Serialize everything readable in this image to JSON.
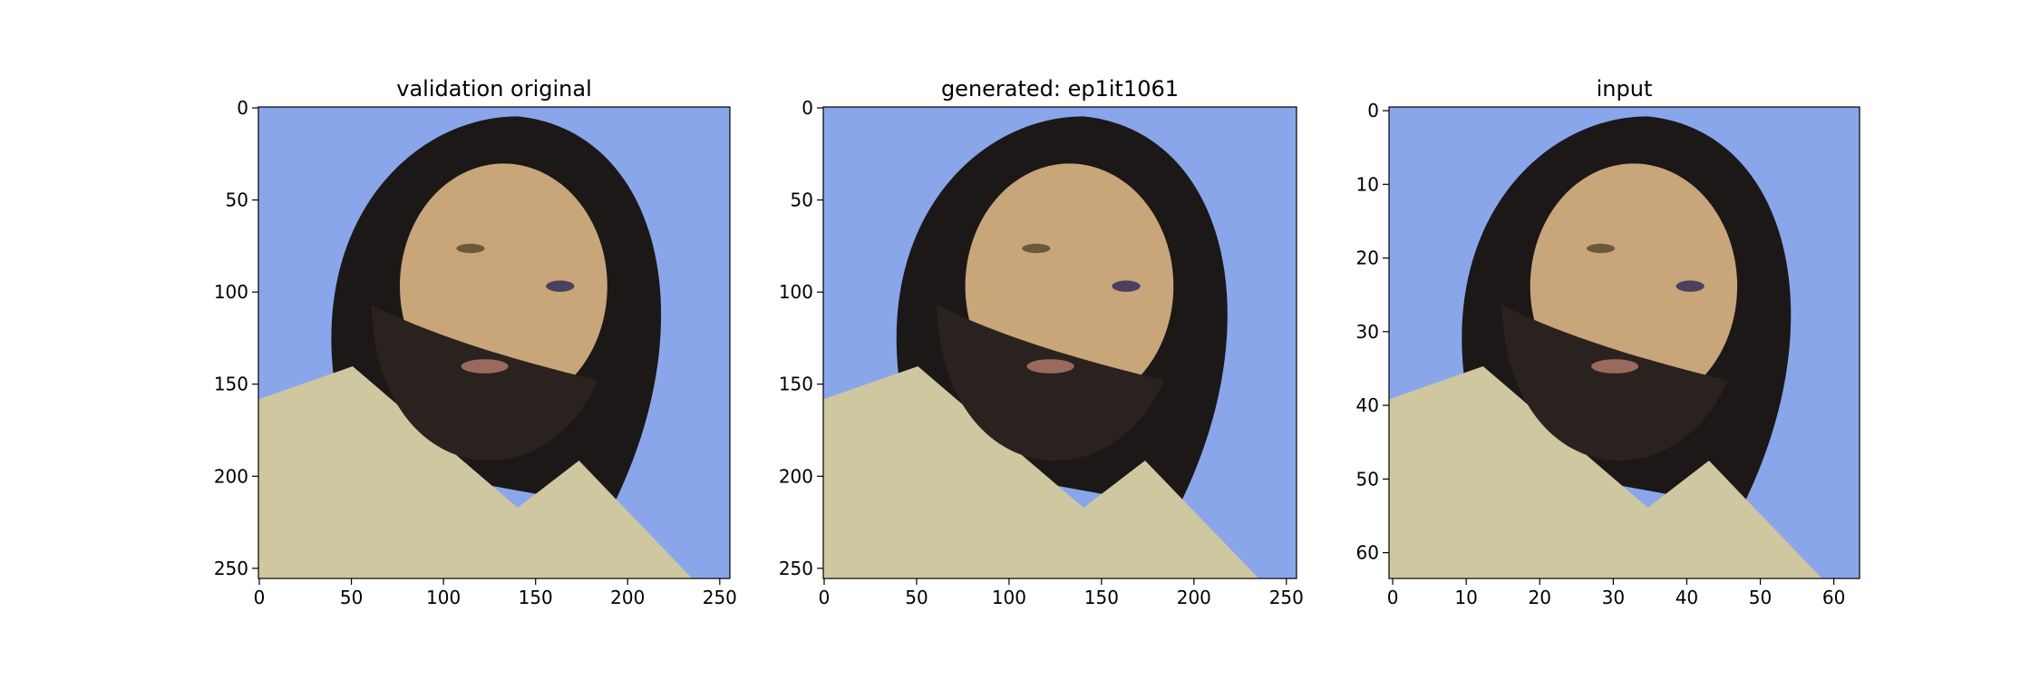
{
  "chart_data": [
    {
      "type": "image",
      "title": "validation original",
      "xlim": [
        -0.5,
        255.5
      ],
      "ylim": [
        255.5,
        -0.5
      ],
      "xticks": [
        0,
        50,
        100,
        150,
        200,
        250
      ],
      "yticks": [
        0,
        50,
        100,
        150,
        200,
        250
      ]
    },
    {
      "type": "image",
      "title": "generated: ep1it1061",
      "xlim": [
        -0.5,
        255.5
      ],
      "ylim": [
        255.5,
        -0.5
      ],
      "xticks": [
        0,
        50,
        100,
        150,
        200,
        250
      ],
      "yticks": [
        0,
        50,
        100,
        150,
        200,
        250
      ]
    },
    {
      "type": "image",
      "title": "input",
      "xlim": [
        -0.5,
        63.5
      ],
      "ylim": [
        63.5,
        -0.5
      ],
      "xticks": [
        0,
        10,
        20,
        30,
        40,
        50,
        60
      ],
      "yticks": [
        0,
        10,
        20,
        30,
        40,
        50,
        60
      ]
    }
  ]
}
